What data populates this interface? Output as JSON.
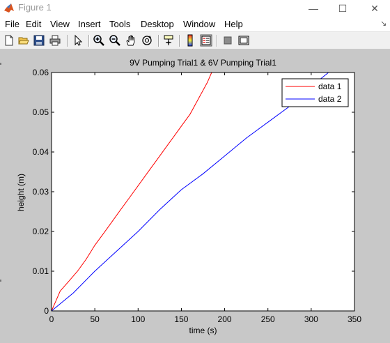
{
  "window": {
    "title": "Figure 1",
    "minimize_glyph": "—",
    "maximize_glyph": "☐",
    "close_glyph": "✕"
  },
  "menu": {
    "items": [
      "File",
      "Edit",
      "View",
      "Insert",
      "Tools",
      "Desktop",
      "Window",
      "Help"
    ],
    "overflow_glyph": "↘"
  },
  "toolbar": {
    "icons": [
      "new-figure-icon",
      "open-file-icon",
      "save-figure-icon",
      "print-figure-icon",
      "edit-plot-arrow-icon",
      "zoom-in-icon",
      "zoom-out-icon",
      "pan-hand-icon",
      "rotate-3d-icon",
      "data-cursor-icon",
      "insert-colorbar-icon",
      "insert-legend-icon",
      "hide-plot-tools-icon",
      "show-plot-tools-icon"
    ]
  },
  "chart_data": {
    "type": "line",
    "title": "9V Pumping Trial1 & 6V Pumping Trial1",
    "xlabel": "time (s)",
    "ylabel": "height (m)",
    "xlim": [
      0,
      350
    ],
    "ylim": [
      0,
      0.06
    ],
    "xticks": [
      "0",
      "50",
      "100",
      "150",
      "200",
      "250",
      "300",
      "350"
    ],
    "yticks": [
      "0",
      "0.01",
      "0.02",
      "0.03",
      "0.04",
      "0.05",
      "0.06"
    ],
    "grid": false,
    "legend": "top-right",
    "series": [
      {
        "name": "data 1",
        "color": "#ff0000",
        "x": [
          0,
          5,
          10,
          20,
          30,
          40,
          50,
          60,
          70,
          80,
          90,
          100,
          110,
          120,
          130,
          140,
          150,
          160,
          170,
          180,
          185
        ],
        "y": [
          0,
          0.0025,
          0.005,
          0.0075,
          0.01,
          0.013,
          0.0165,
          0.0195,
          0.0225,
          0.0255,
          0.0285,
          0.0315,
          0.0345,
          0.0375,
          0.0405,
          0.0435,
          0.0465,
          0.0495,
          0.0535,
          0.0575,
          0.06
        ]
      },
      {
        "name": "data 2",
        "color": "#0000ff",
        "x": [
          0,
          25,
          50,
          75,
          100,
          125,
          150,
          175,
          200,
          225,
          250,
          275,
          300,
          320
        ],
        "y": [
          0,
          0.0045,
          0.01,
          0.015,
          0.02,
          0.0255,
          0.0305,
          0.0345,
          0.039,
          0.0435,
          0.0475,
          0.0515,
          0.0565,
          0.06
        ]
      }
    ]
  },
  "colors": {
    "figure_background": "#c8c8c8",
    "axes_background": "#ffffff",
    "titlebar_background": "#ffffff"
  }
}
